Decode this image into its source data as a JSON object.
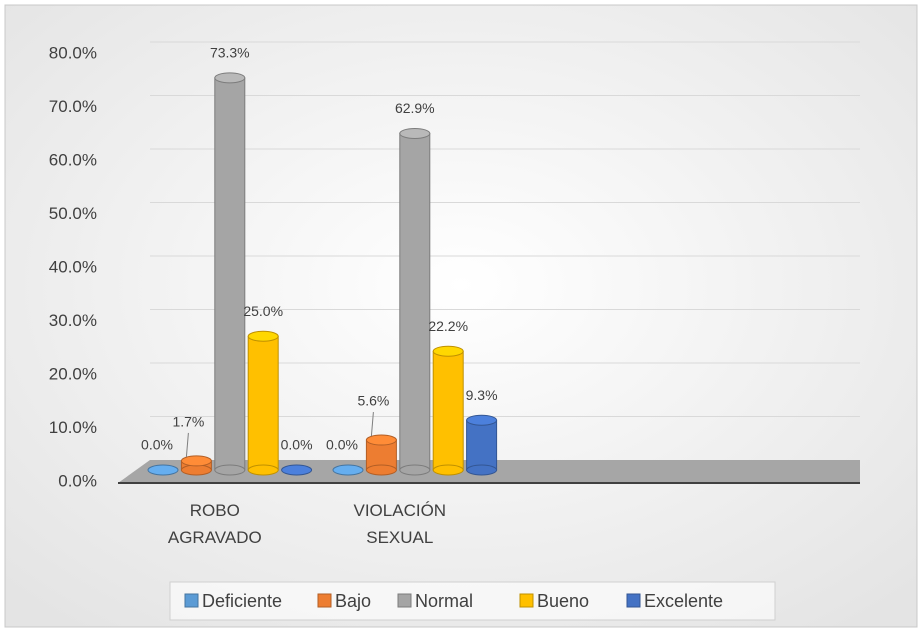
{
  "chart_data": {
    "type": "bar",
    "categories": [
      "ROBO AGRAVADO",
      "VIOLACIÓN SEXUAL"
    ],
    "series": [
      {
        "name": "Deficiente",
        "color": "#5b9bd5",
        "values": [
          0,
          0
        ],
        "value_labels": [
          "0.0%",
          "0.0%"
        ]
      },
      {
        "name": "Bajo",
        "color": "#ed7d31",
        "values": [
          1.7,
          5.6
        ],
        "value_labels": [
          "1.7%",
          "5.6%"
        ]
      },
      {
        "name": "Normal",
        "color": "#a5a5a5",
        "values": [
          73.3,
          62.9
        ],
        "value_labels": [
          "73.3%",
          "62.9%"
        ]
      },
      {
        "name": "Bueno",
        "color": "#ffc000",
        "values": [
          25.0,
          22.2
        ],
        "value_labels": [
          "25.0%",
          "22.2%"
        ]
      },
      {
        "name": "Excelente",
        "color": "#4472c4",
        "values": [
          0,
          9.3
        ],
        "value_labels": [
          "0.0%",
          "9.3%"
        ]
      }
    ],
    "ylim": [
      0,
      80
    ],
    "yticks": [
      {
        "value": 0,
        "label": "0.0%"
      },
      {
        "value": 10,
        "label": "10.0%"
      },
      {
        "value": 20,
        "label": "20.0%"
      },
      {
        "value": 30,
        "label": "30.0%"
      },
      {
        "value": 40,
        "label": "40.0%"
      },
      {
        "value": 50,
        "label": "50.0%"
      },
      {
        "value": 60,
        "label": "60.0%"
      },
      {
        "value": 70,
        "label": "70.0%"
      },
      {
        "value": 80,
        "label": "80.0%"
      }
    ],
    "grid": true,
    "legend": "bottom"
  }
}
